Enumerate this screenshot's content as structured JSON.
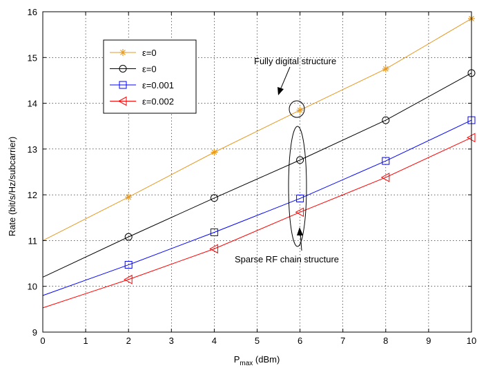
{
  "chart_data": {
    "type": "line",
    "xlabel_main": "P",
    "xlabel_sub": "max",
    "xlabel_unit": " (dBm)",
    "ylabel": "Rate (bit/s/Hz/subcarrier)",
    "xlim": [
      0,
      10
    ],
    "ylim": [
      9,
      16
    ],
    "x_ticks": [
      "0",
      "1",
      "2",
      "3",
      "4",
      "5",
      "6",
      "7",
      "8",
      "9",
      "10"
    ],
    "y_ticks": [
      "9",
      "10",
      "11",
      "12",
      "13",
      "14",
      "15",
      "16"
    ],
    "grid": true,
    "legend_position": "top-left",
    "x": [
      0,
      2,
      4,
      6,
      8,
      10
    ],
    "series": [
      {
        "name": "ε=0",
        "color": "#e69a22",
        "marker": "star",
        "values": [
          11.0,
          11.95,
          12.93,
          13.85,
          14.75,
          15.85
        ]
      },
      {
        "name": "ε=0",
        "color": "#000000",
        "marker": "circle",
        "values": [
          10.2,
          11.08,
          11.93,
          12.76,
          13.63,
          14.66
        ]
      },
      {
        "name": "ε=0.001",
        "color": "#0000ff",
        "marker": "square",
        "values": [
          9.8,
          10.47,
          11.18,
          11.92,
          12.74,
          13.63
        ]
      },
      {
        "name": "ε=0.002",
        "color": "#ff0000",
        "marker": "triangle-left",
        "values": [
          9.53,
          10.15,
          10.82,
          11.62,
          12.38,
          13.25
        ]
      }
    ],
    "annotations": [
      {
        "text": "Fully digital structure"
      },
      {
        "text": "Sparse RF chain structure"
      }
    ]
  }
}
